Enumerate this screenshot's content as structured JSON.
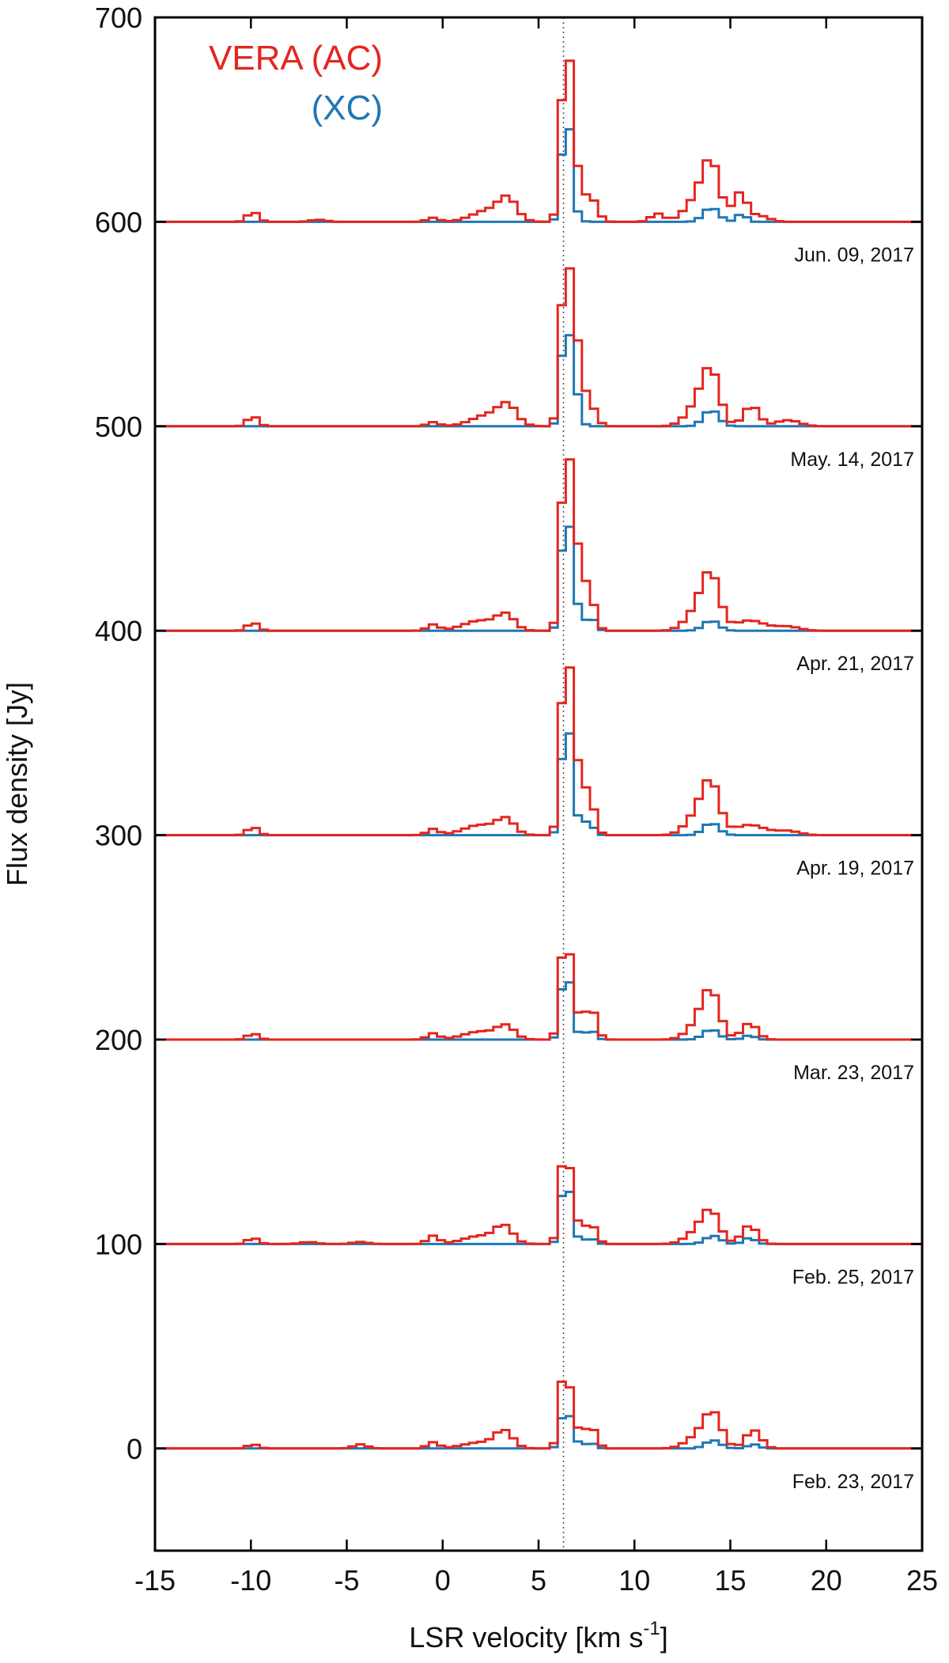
{
  "chart_data": {
    "type": "line",
    "xlabel": "LSR velocity [km s",
    "xlabel_superscript": "-1",
    "xlabel_suffix": "]",
    "ylabel": "Flux density [Jy]",
    "xlim": [
      -15,
      25
    ],
    "ylim": [
      -50,
      700
    ],
    "x_ticks": [
      -15,
      -10,
      -5,
      0,
      5,
      10,
      15,
      20,
      25
    ],
    "y_ticks": [
      0,
      100,
      200,
      300,
      400,
      500,
      600,
      700
    ],
    "reference_line_x": 6.3,
    "reference_line_style": "dotted",
    "step_width": 0.42,
    "legend": [
      {
        "label": "VERA (AC)",
        "color": "#e3261f"
      },
      {
        "label": "(XC)",
        "color": "#1f77b4"
      }
    ],
    "legend_placement": "top-left",
    "epochs": [
      {
        "date": "Jun. 09, 2017",
        "offset": 600,
        "ac_components": [
          [
            -9.9,
            5,
            0.28
          ],
          [
            -0.5,
            2,
            0.3
          ],
          [
            -6.5,
            1,
            0.4
          ],
          [
            2.5,
            6,
            0.9
          ],
          [
            3.4,
            9,
            0.45
          ],
          [
            6.2,
            25,
            0.2
          ],
          [
            6.5,
            82,
            0.22
          ],
          [
            7.0,
            22,
            0.25
          ],
          [
            7.7,
            12,
            0.35
          ],
          [
            11.2,
            4,
            0.35
          ],
          [
            13.2,
            10,
            0.6
          ],
          [
            14.0,
            27,
            0.45
          ],
          [
            15.5,
            14,
            0.35
          ],
          [
            16.5,
            3,
            0.5
          ]
        ],
        "xc_components": [
          [
            6.25,
            15,
            0.2
          ],
          [
            6.5,
            52,
            0.2
          ],
          [
            7.0,
            4,
            0.2
          ],
          [
            14.0,
            7,
            0.4
          ],
          [
            15.6,
            4,
            0.25
          ]
        ]
      },
      {
        "date": "May. 14, 2017",
        "offset": 500,
        "ac_components": [
          [
            -9.9,
            5,
            0.28
          ],
          [
            -0.5,
            2,
            0.3
          ],
          [
            2.5,
            6,
            0.9
          ],
          [
            3.4,
            8,
            0.45
          ],
          [
            6.2,
            28,
            0.2
          ],
          [
            6.5,
            74,
            0.22
          ],
          [
            7.0,
            36,
            0.25
          ],
          [
            7.6,
            12,
            0.35
          ],
          [
            13.3,
            10,
            0.6
          ],
          [
            14.0,
            24,
            0.45
          ],
          [
            16.1,
            10,
            0.4
          ],
          [
            18.0,
            3,
            0.6
          ]
        ],
        "xc_components": [
          [
            6.25,
            18,
            0.2
          ],
          [
            6.5,
            48,
            0.2
          ],
          [
            7.0,
            15,
            0.2
          ],
          [
            14.0,
            8,
            0.4
          ]
        ]
      },
      {
        "date": "Apr. 21, 2017",
        "offset": 400,
        "ac_components": [
          [
            -9.9,
            4,
            0.28
          ],
          [
            -0.5,
            3,
            0.3
          ],
          [
            2.0,
            5,
            0.9
          ],
          [
            3.3,
            7,
            0.45
          ],
          [
            6.2,
            28,
            0.2
          ],
          [
            6.5,
            82,
            0.22
          ],
          [
            7.0,
            36,
            0.25
          ],
          [
            7.6,
            20,
            0.3
          ],
          [
            13.3,
            10,
            0.6
          ],
          [
            14.0,
            24,
            0.45
          ],
          [
            16.0,
            5,
            0.8
          ],
          [
            18.0,
            2,
            0.6
          ]
        ],
        "xc_components": [
          [
            6.25,
            20,
            0.2
          ],
          [
            6.5,
            56,
            0.2
          ],
          [
            7.0,
            12,
            0.2
          ],
          [
            7.7,
            7,
            0.25
          ],
          [
            14.0,
            5,
            0.4
          ]
        ]
      },
      {
        "date": "Apr. 19, 2017",
        "offset": 300,
        "ac_components": [
          [
            -9.9,
            4,
            0.28
          ],
          [
            -0.5,
            3,
            0.3
          ],
          [
            2.0,
            5,
            0.9
          ],
          [
            3.3,
            7,
            0.45
          ],
          [
            6.2,
            30,
            0.2
          ],
          [
            6.5,
            82,
            0.22
          ],
          [
            7.0,
            30,
            0.25
          ],
          [
            7.6,
            20,
            0.3
          ],
          [
            13.3,
            10,
            0.6
          ],
          [
            14.0,
            22,
            0.45
          ],
          [
            16.0,
            5,
            0.8
          ],
          [
            18.0,
            2,
            0.6
          ]
        ],
        "xc_components": [
          [
            6.25,
            18,
            0.2
          ],
          [
            6.5,
            56,
            0.2
          ],
          [
            7.0,
            8,
            0.2
          ],
          [
            7.6,
            7,
            0.25
          ],
          [
            14.0,
            6,
            0.4
          ]
        ]
      },
      {
        "date": "Mar. 23, 2017",
        "offset": 200,
        "ac_components": [
          [
            -9.9,
            3,
            0.28
          ],
          [
            -0.5,
            3,
            0.3
          ],
          [
            2.0,
            4,
            0.9
          ],
          [
            3.3,
            6,
            0.45
          ],
          [
            6.2,
            22,
            0.2
          ],
          [
            6.5,
            43,
            0.22
          ],
          [
            7.0,
            10,
            0.25
          ],
          [
            7.7,
            16,
            0.3
          ],
          [
            13.4,
            8,
            0.6
          ],
          [
            14.0,
            20,
            0.45
          ],
          [
            16.0,
            8,
            0.4
          ]
        ],
        "xc_components": [
          [
            6.25,
            14,
            0.2
          ],
          [
            6.5,
            31,
            0.2
          ],
          [
            7.0,
            3,
            0.2
          ],
          [
            7.7,
            5,
            0.25
          ],
          [
            14.0,
            5,
            0.4
          ],
          [
            16.0,
            2,
            0.3
          ]
        ]
      },
      {
        "date": "Feb. 25, 2017",
        "offset": 100,
        "ac_components": [
          [
            -9.9,
            3,
            0.28
          ],
          [
            -7.0,
            1,
            0.4
          ],
          [
            -4.3,
            1,
            0.4
          ],
          [
            -0.5,
            4,
            0.3
          ],
          [
            2.0,
            4,
            0.9
          ],
          [
            3.2,
            8,
            0.45
          ],
          [
            6.2,
            22,
            0.2
          ],
          [
            6.5,
            38,
            0.22
          ],
          [
            7.0,
            9,
            0.25
          ],
          [
            7.7,
            10,
            0.3
          ],
          [
            13.3,
            6,
            0.6
          ],
          [
            14.0,
            14,
            0.45
          ],
          [
            16.0,
            9,
            0.4
          ]
        ],
        "xc_components": [
          [
            6.25,
            14,
            0.2
          ],
          [
            6.5,
            28,
            0.2
          ],
          [
            7.0,
            3,
            0.2
          ],
          [
            7.7,
            3,
            0.25
          ],
          [
            14.1,
            4,
            0.4
          ],
          [
            16.0,
            3,
            0.3
          ]
        ]
      },
      {
        "date": "Feb. 23, 2017",
        "offset": 0,
        "ac_components": [
          [
            -9.9,
            2,
            0.28
          ],
          [
            -4.3,
            2,
            0.35
          ],
          [
            -0.5,
            3,
            0.3
          ],
          [
            2.0,
            3,
            0.9
          ],
          [
            3.2,
            8,
            0.45
          ],
          [
            6.2,
            20,
            0.2
          ],
          [
            6.5,
            30,
            0.22
          ],
          [
            7.0,
            8,
            0.25
          ],
          [
            7.7,
            11,
            0.3
          ],
          [
            13.3,
            6,
            0.6
          ],
          [
            14.1,
            16,
            0.45
          ],
          [
            16.2,
            9,
            0.4
          ]
        ],
        "xc_components": [
          [
            6.25,
            9,
            0.2
          ],
          [
            6.5,
            17,
            0.2
          ],
          [
            7.0,
            3,
            0.2
          ],
          [
            7.7,
            3,
            0.25
          ],
          [
            14.1,
            4,
            0.4
          ],
          [
            16.2,
            2,
            0.3
          ]
        ]
      }
    ]
  }
}
